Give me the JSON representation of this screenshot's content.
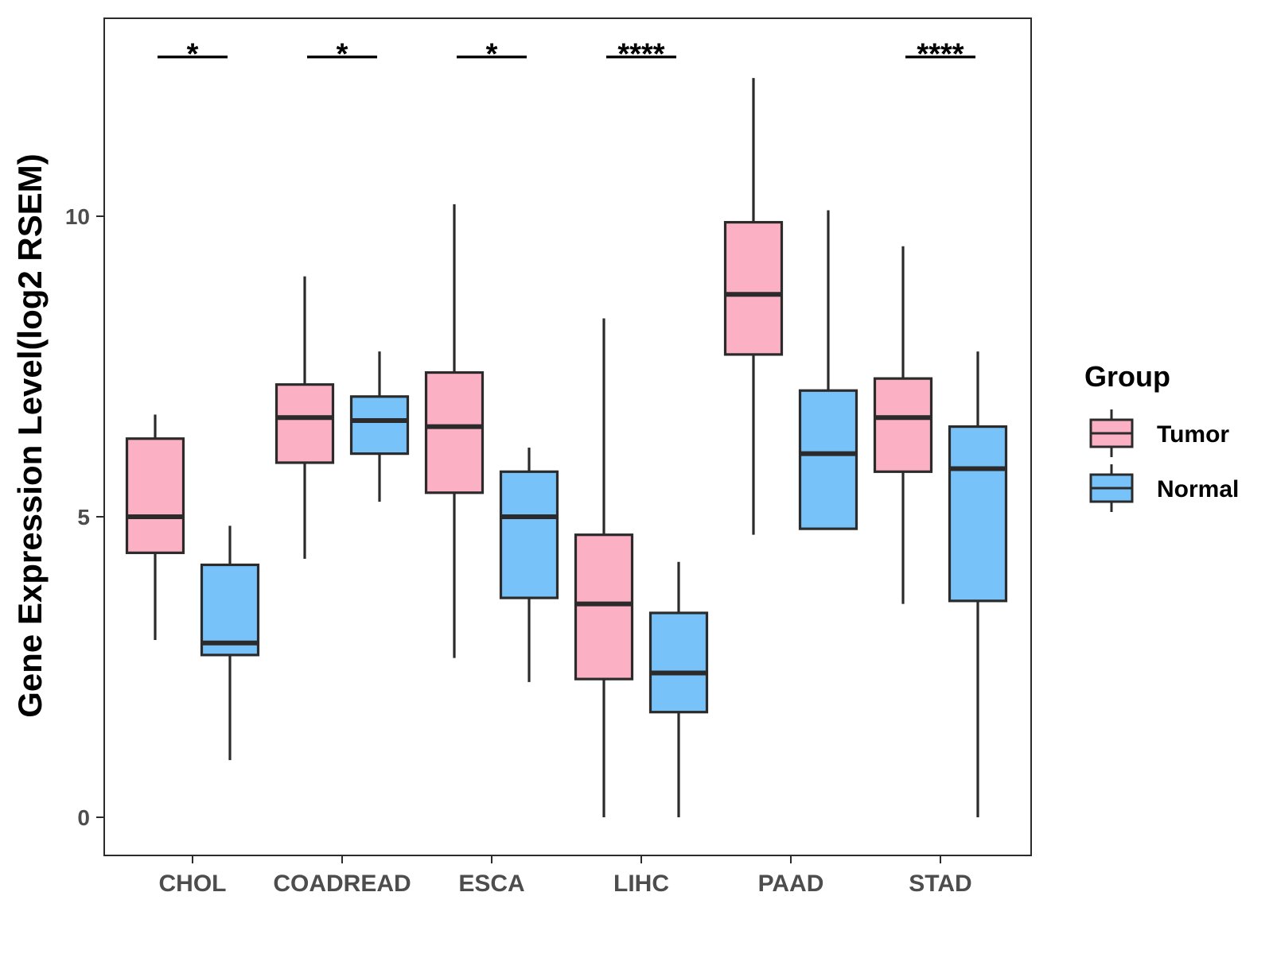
{
  "chart_data": {
    "type": "boxplot",
    "ylabel": "Gene Expression Level(log2 RSEM)",
    "xlabel": "",
    "ylim": [
      -0.6,
      13.3
    ],
    "yticks": [
      0,
      5,
      10
    ],
    "categories": [
      "CHOL",
      "COADREAD",
      "ESCA",
      "LIHC",
      "PAAD",
      "STAD"
    ],
    "legend": {
      "title": "Group",
      "position": "right",
      "entries": [
        {
          "name": "Tumor",
          "color": "#FCB0C3"
        },
        {
          "name": "Normal",
          "color": "#77C2F8"
        }
      ]
    },
    "series": [
      {
        "name": "Tumor",
        "color": "#FCB0C3",
        "boxes": [
          {
            "category": "CHOL",
            "min": 2.95,
            "q1": 4.4,
            "median": 5.0,
            "q3": 6.3,
            "max": 6.7
          },
          {
            "category": "COADREAD",
            "min": 4.3,
            "q1": 5.9,
            "median": 6.65,
            "q3": 7.2,
            "max": 9.0
          },
          {
            "category": "ESCA",
            "min": 2.65,
            "q1": 5.4,
            "median": 6.5,
            "q3": 7.4,
            "max": 10.2
          },
          {
            "category": "LIHC",
            "min": 0.0,
            "q1": 2.3,
            "median": 3.55,
            "q3": 4.7,
            "max": 8.3
          },
          {
            "category": "PAAD",
            "min": 4.7,
            "q1": 7.7,
            "median": 8.7,
            "q3": 9.9,
            "max": 12.3
          },
          {
            "category": "STAD",
            "min": 3.55,
            "q1": 5.75,
            "median": 6.65,
            "q3": 7.3,
            "max": 9.5
          }
        ]
      },
      {
        "name": "Normal",
        "color": "#77C2F8",
        "boxes": [
          {
            "category": "CHOL",
            "min": 0.95,
            "q1": 2.7,
            "median": 2.9,
            "q3": 4.2,
            "max": 4.85
          },
          {
            "category": "COADREAD",
            "min": 5.25,
            "q1": 6.05,
            "median": 6.6,
            "q3": 7.0,
            "max": 7.75
          },
          {
            "category": "ESCA",
            "min": 2.25,
            "q1": 3.65,
            "median": 5.0,
            "q3": 5.75,
            "max": 6.15
          },
          {
            "category": "LIHC",
            "min": 0.0,
            "q1": 1.75,
            "median": 2.4,
            "q3": 3.4,
            "max": 4.25
          },
          {
            "category": "PAAD",
            "min": 4.8,
            "q1": 4.8,
            "median": 6.05,
            "q3": 7.1,
            "max": 10.1
          },
          {
            "category": "STAD",
            "min": 0.0,
            "q1": 3.6,
            "median": 5.8,
            "q3": 6.5,
            "max": 7.75
          }
        ]
      }
    ],
    "annotations": [
      {
        "category": "CHOL",
        "label": "*"
      },
      {
        "category": "COADREAD",
        "label": "*"
      },
      {
        "category": "ESCA",
        "label": "*"
      },
      {
        "category": "LIHC",
        "label": "****"
      },
      {
        "category": "STAD",
        "label": "****"
      }
    ],
    "annotation_y": 12.65
  }
}
